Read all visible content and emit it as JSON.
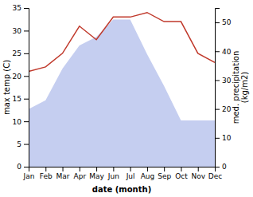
{
  "chart_data": {
    "type": "line",
    "categories": [
      "Jan",
      "Feb",
      "Mar",
      "Apr",
      "May",
      "Jun",
      "Jul",
      "Aug",
      "Sep",
      "Oct",
      "Nov",
      "Dec"
    ],
    "xlabel": "date (month)",
    "ylabel": "max temp (C)",
    "y2label": "med. precipitation\n(kg/m2)",
    "series": [
      {
        "type": "area",
        "axis": "y2",
        "color": "#c5cef0",
        "values": [
          20,
          23,
          34,
          42,
          45,
          51,
          51,
          39,
          28,
          16,
          16,
          16
        ]
      },
      {
        "type": "line",
        "color": "#c0392b",
        "values": [
          21,
          22,
          25,
          31,
          28,
          33,
          33,
          34,
          32,
          32,
          25,
          23
        ]
      }
    ],
    "ylim": [
      0,
      35
    ],
    "yticks": [
      0,
      5,
      10,
      15,
      20,
      25,
      30,
      35
    ],
    "y2lim": [
      0,
      55
    ],
    "y2ticks": [
      0,
      10,
      20,
      30,
      40,
      50
    ]
  }
}
